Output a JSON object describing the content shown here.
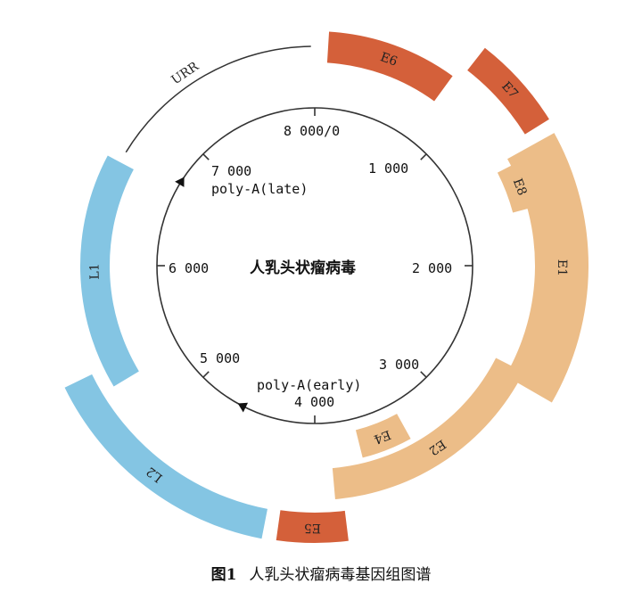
{
  "diagram": {
    "center_title": "人乳头状瘤病毒",
    "scale_labels": [
      "8 000/0",
      "1 000",
      "2 000",
      "3 000",
      "4 000",
      "5 000",
      "6 000",
      "7 000"
    ],
    "poly_a_late": "poly-A(late)",
    "poly_a_early": "poly-A(early)",
    "urr_label": "URR",
    "genes": [
      {
        "label": "E6",
        "color": "#d4603a"
      },
      {
        "label": "E7",
        "color": "#d4603a"
      },
      {
        "label": "E1",
        "color": "#ecbd88"
      },
      {
        "label": "E8",
        "color": "#ecbd88"
      },
      {
        "label": "E2",
        "color": "#ecbd88"
      },
      {
        "label": "E4",
        "color": "#ecbd88"
      },
      {
        "label": "E5",
        "color": "#d4603a"
      },
      {
        "label": "L2",
        "color": "#84c5e3"
      },
      {
        "label": "L1",
        "color": "#84c5e3"
      }
    ]
  },
  "caption": {
    "figure_number": "图1",
    "text": "人乳头状瘤病毒基因组图谱"
  }
}
